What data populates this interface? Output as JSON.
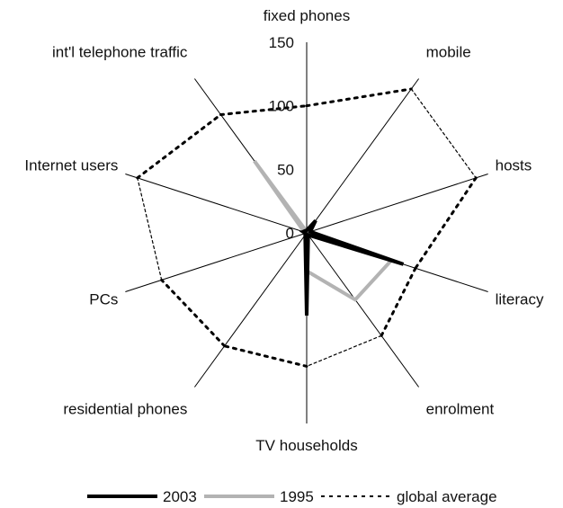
{
  "chart_data": {
    "type": "radar",
    "title": "",
    "axes": [
      "fixed phones",
      "mobile",
      "hosts",
      "literacy",
      "enrolment",
      "TV households",
      "residential phones",
      "PCs",
      "Internet users",
      "int'l telephone traffic"
    ],
    "rmax": 150,
    "ticks": [
      0,
      50,
      100,
      150
    ],
    "series": [
      {
        "name": "2003",
        "color": "#000000",
        "style": "solid",
        "values": [
          2,
          12,
          3,
          80,
          2,
          65,
          2,
          1,
          3,
          2
        ]
      },
      {
        "name": "1995",
        "color": "#b3b3b3",
        "style": "solid",
        "values": [
          1,
          2,
          2,
          70,
          65,
          30,
          1,
          1,
          2,
          70
        ]
      },
      {
        "name": "global average",
        "color": "#000000",
        "style": "dotted",
        "values": [
          100,
          140,
          140,
          90,
          100,
          105,
          110,
          120,
          140,
          115
        ]
      }
    ],
    "legend_position": "bottom"
  }
}
